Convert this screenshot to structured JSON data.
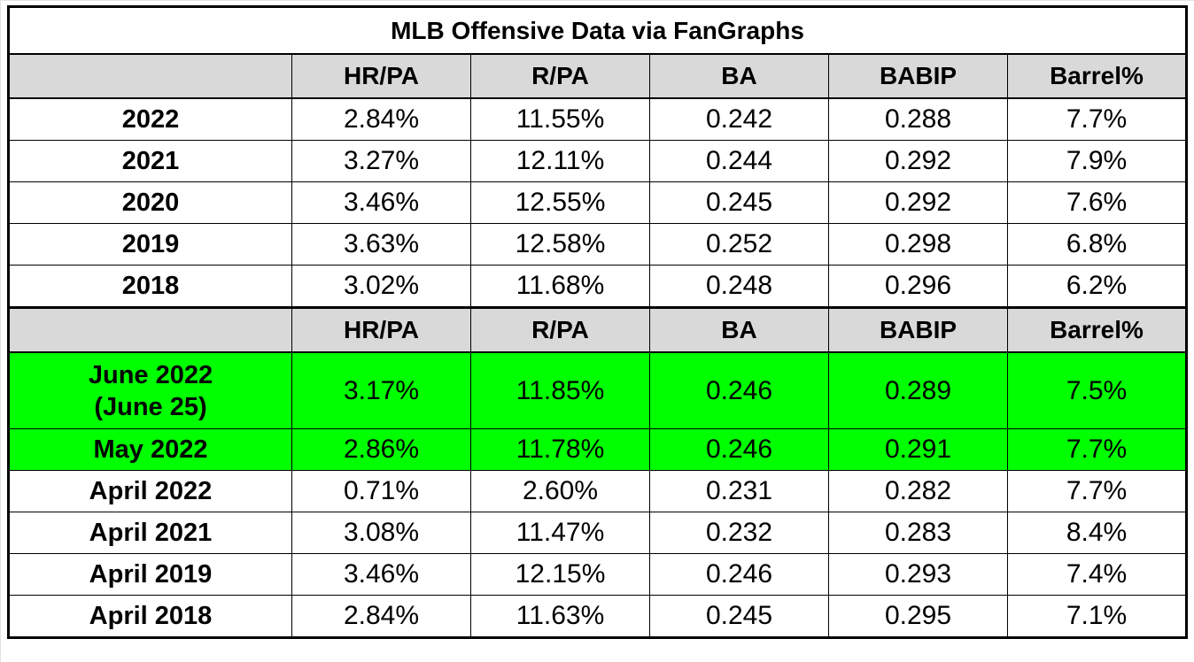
{
  "title": "MLB Offensive Data via FanGraphs",
  "columns": [
    "HR/PA",
    "R/PA",
    "BA",
    "BABIP",
    "Barrel%"
  ],
  "yearly_rows": [
    {
      "label": "2022",
      "values": [
        "2.84%",
        "11.55%",
        "0.242",
        "0.288",
        "7.7%"
      ]
    },
    {
      "label": "2021",
      "values": [
        "3.27%",
        "12.11%",
        "0.244",
        "0.292",
        "7.9%"
      ]
    },
    {
      "label": "2020",
      "values": [
        "3.46%",
        "12.55%",
        "0.245",
        "0.292",
        "7.6%"
      ]
    },
    {
      "label": "2019",
      "values": [
        "3.63%",
        "12.58%",
        "0.252",
        "0.298",
        "6.8%"
      ]
    },
    {
      "label": "2018",
      "values": [
        "3.02%",
        "11.68%",
        "0.248",
        "0.296",
        "6.2%"
      ]
    }
  ],
  "monthly_rows": [
    {
      "label_line1": "June 2022",
      "label_line2": "(June 25)",
      "values": [
        "3.17%",
        "11.85%",
        "0.246",
        "0.289",
        "7.5%"
      ],
      "highlight": true
    },
    {
      "label_line1": "May 2022",
      "values": [
        "2.86%",
        "11.78%",
        "0.246",
        "0.291",
        "7.7%"
      ],
      "highlight": true
    },
    {
      "label_line1": "April 2022",
      "values": [
        "0.71%",
        "2.60%",
        "0.231",
        "0.282",
        "7.7%"
      ],
      "highlight": false
    },
    {
      "label_line1": "April 2021",
      "values": [
        "3.08%",
        "11.47%",
        "0.232",
        "0.283",
        "8.4%"
      ],
      "highlight": false
    },
    {
      "label_line1": "April 2019",
      "values": [
        "3.46%",
        "12.15%",
        "0.246",
        "0.293",
        "7.4%"
      ],
      "highlight": false
    },
    {
      "label_line1": "April 2018",
      "values": [
        "2.84%",
        "11.63%",
        "0.245",
        "0.295",
        "7.1%"
      ],
      "highlight": false
    }
  ],
  "colors": {
    "header_bg": "#d9d9d9",
    "highlight_bg": "#00ff00",
    "border": "#000000"
  }
}
